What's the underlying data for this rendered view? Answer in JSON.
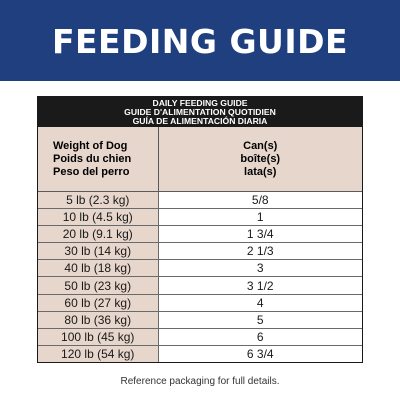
{
  "banner": {
    "title": "FEEDING GUIDE"
  },
  "table": {
    "title_lines": [
      "DAILY FEEDING GUIDE",
      "GUIDE D'ALIMENTATION QUOTIDIEN",
      "GUÍA DE ALIMENTACIÓN DIARIA"
    ],
    "header": {
      "weight": [
        "Weight of Dog",
        "Poids du chien",
        "Peso del perro"
      ],
      "cans": [
        "Can(s)",
        "boîte(s)",
        "lata(s)"
      ]
    },
    "rows": [
      {
        "weight": "5 lb (2.3 kg)",
        "cans": "5/8"
      },
      {
        "weight": "10 lb (4.5 kg)",
        "cans": "1"
      },
      {
        "weight": "20 lb (9.1 kg)",
        "cans": "1 3/4"
      },
      {
        "weight": "30 lb (14 kg)",
        "cans": "2 1/3"
      },
      {
        "weight": "40 lb (18 kg)",
        "cans": "3"
      },
      {
        "weight": "50 lb (23 kg)",
        "cans": "3 1/2"
      },
      {
        "weight": "60 lb (27 kg)",
        "cans": "4"
      },
      {
        "weight": "80 lb (36 kg)",
        "cans": "5"
      },
      {
        "weight": "100 lb (45 kg)",
        "cans": "6"
      },
      {
        "weight": "120 lb (54 kg)",
        "cans": "6 3/4"
      }
    ]
  },
  "footnote": "Reference packaging for full details.",
  "colors": {
    "banner": "#1f3f7e",
    "header_bg": "#1a1a1a",
    "beige": "#e6d6cc"
  }
}
